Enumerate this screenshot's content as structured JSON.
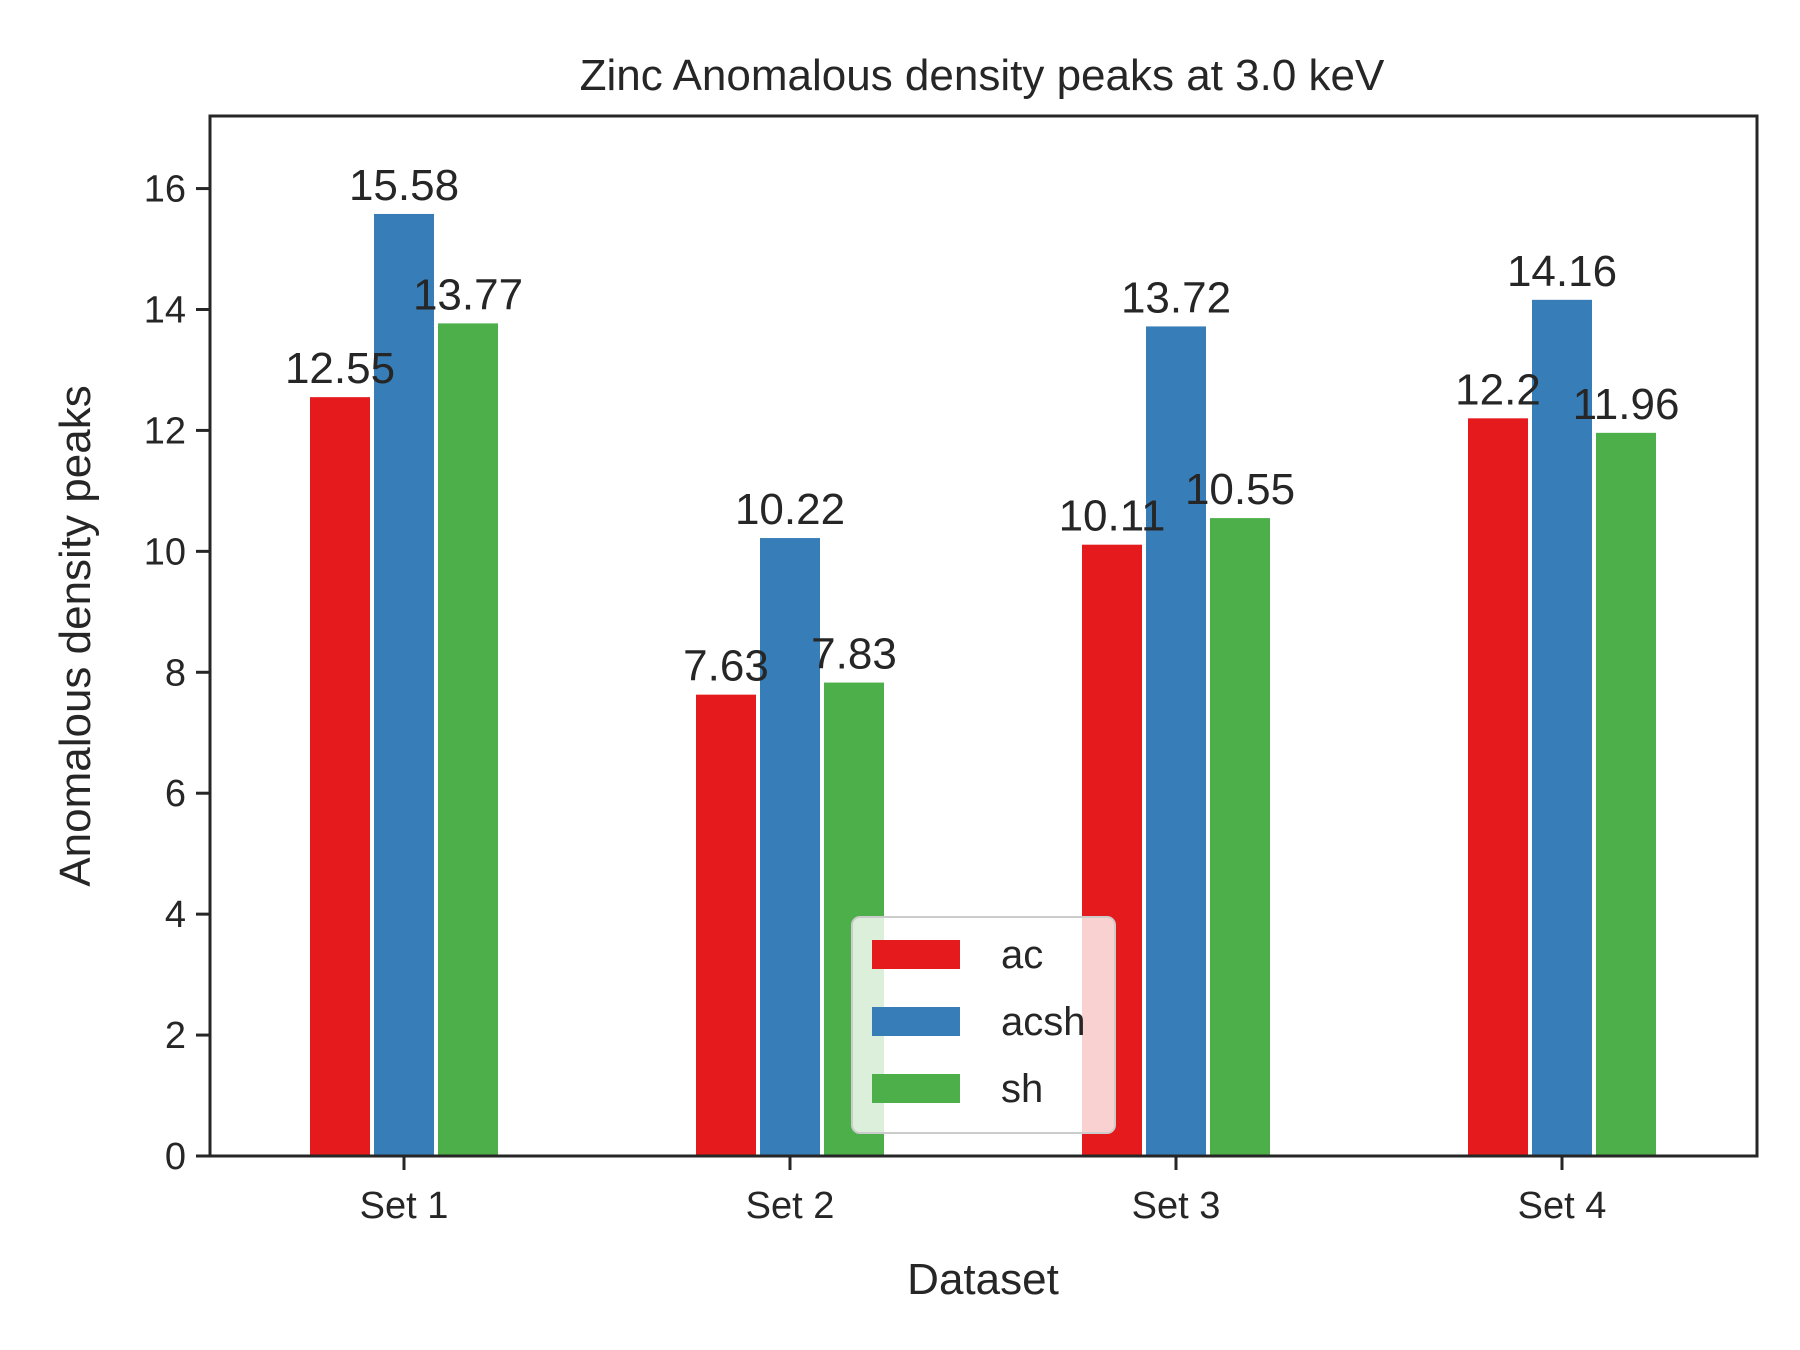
{
  "chart_data": {
    "type": "bar",
    "title": "Zinc Anomalous density peaks at 3.0 keV",
    "xlabel": "Dataset",
    "ylabel": "Anomalous density peaks",
    "categories": [
      "Set 1",
      "Set 2",
      "Set 3",
      "Set 4"
    ],
    "series": [
      {
        "name": "ac",
        "color": "#e41a1c",
        "values": [
          12.55,
          7.63,
          10.11,
          12.2
        ],
        "labels": [
          "12.55",
          "7.63",
          "10.11",
          "12.2"
        ]
      },
      {
        "name": "acsh",
        "color": "#377eb8",
        "values": [
          15.58,
          10.22,
          13.72,
          14.16
        ],
        "labels": [
          "15.58",
          "10.22",
          "13.72",
          "14.16"
        ]
      },
      {
        "name": "sh",
        "color": "#4daf4a",
        "values": [
          13.77,
          7.83,
          10.55,
          11.96
        ],
        "labels": [
          "13.77",
          "7.83",
          "10.55",
          "11.96"
        ]
      }
    ],
    "ylim": [
      0,
      17.2
    ],
    "yticks": [
      0,
      2,
      4,
      6,
      8,
      10,
      12,
      14,
      16
    ],
    "grid": false,
    "legend_position": "bottom-center"
  }
}
